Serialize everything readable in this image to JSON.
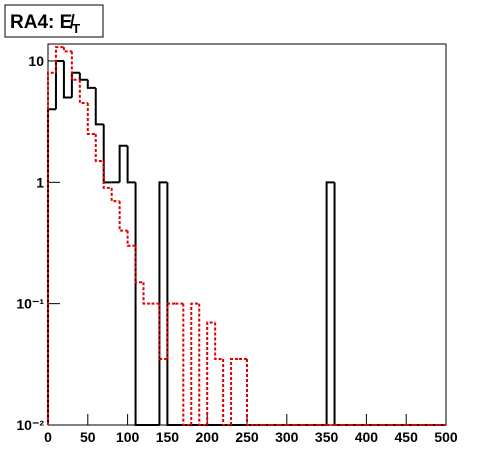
{
  "chart_data": {
    "type": "histogram",
    "title": "RA4: E̸",
    "title_subscript": "T",
    "bins": [
      0,
      10,
      20,
      30,
      40,
      50,
      60,
      70,
      80,
      90,
      100,
      110,
      120,
      130,
      140,
      150,
      160,
      170,
      180,
      190,
      200,
      210,
      220,
      230,
      240,
      250,
      260,
      270,
      280,
      290,
      300,
      310,
      320,
      330,
      340,
      350,
      360,
      370,
      380,
      390,
      400,
      410,
      420,
      430,
      440,
      450,
      460,
      470,
      480,
      490,
      500
    ],
    "series": [
      {
        "color": "#000000",
        "style": "solid",
        "values": [
          4,
          10,
          5,
          8,
          7,
          6,
          3,
          1,
          1,
          2,
          1,
          0,
          0,
          0,
          1,
          0,
          0,
          0,
          0,
          0,
          0,
          0,
          0,
          0,
          0,
          0,
          0,
          0,
          0,
          0,
          0,
          0,
          0,
          0,
          0,
          1,
          0,
          0,
          0,
          0,
          0,
          0,
          0,
          0,
          0,
          0,
          0,
          0,
          0,
          0
        ]
      },
      {
        "color": "#e00000",
        "style": "dotted",
        "values": [
          8,
          13,
          12,
          7,
          4.5,
          2.5,
          1.5,
          0.9,
          0.7,
          0.4,
          0.3,
          0.15,
          0.1,
          0.1,
          0.035,
          0.1,
          0.1,
          0,
          0.1,
          0,
          0.07,
          0.035,
          0,
          0.035,
          0.035,
          0,
          0,
          0,
          0,
          0,
          0,
          0,
          0,
          0,
          0,
          0,
          0,
          0,
          0,
          0,
          0,
          0,
          0,
          0,
          0,
          0,
          0,
          0,
          0,
          0
        ]
      }
    ],
    "xlim": [
      0,
      500
    ],
    "xticks": [
      0,
      50,
      100,
      150,
      200,
      250,
      300,
      350,
      400,
      450,
      500
    ],
    "ylim": [
      0.01,
      13.8
    ],
    "log_y": true,
    "yticks": [
      {
        "value": 0.01,
        "label": "10⁻²"
      },
      {
        "value": 0.1,
        "label": "10⁻¹"
      },
      1,
      10
    ]
  }
}
